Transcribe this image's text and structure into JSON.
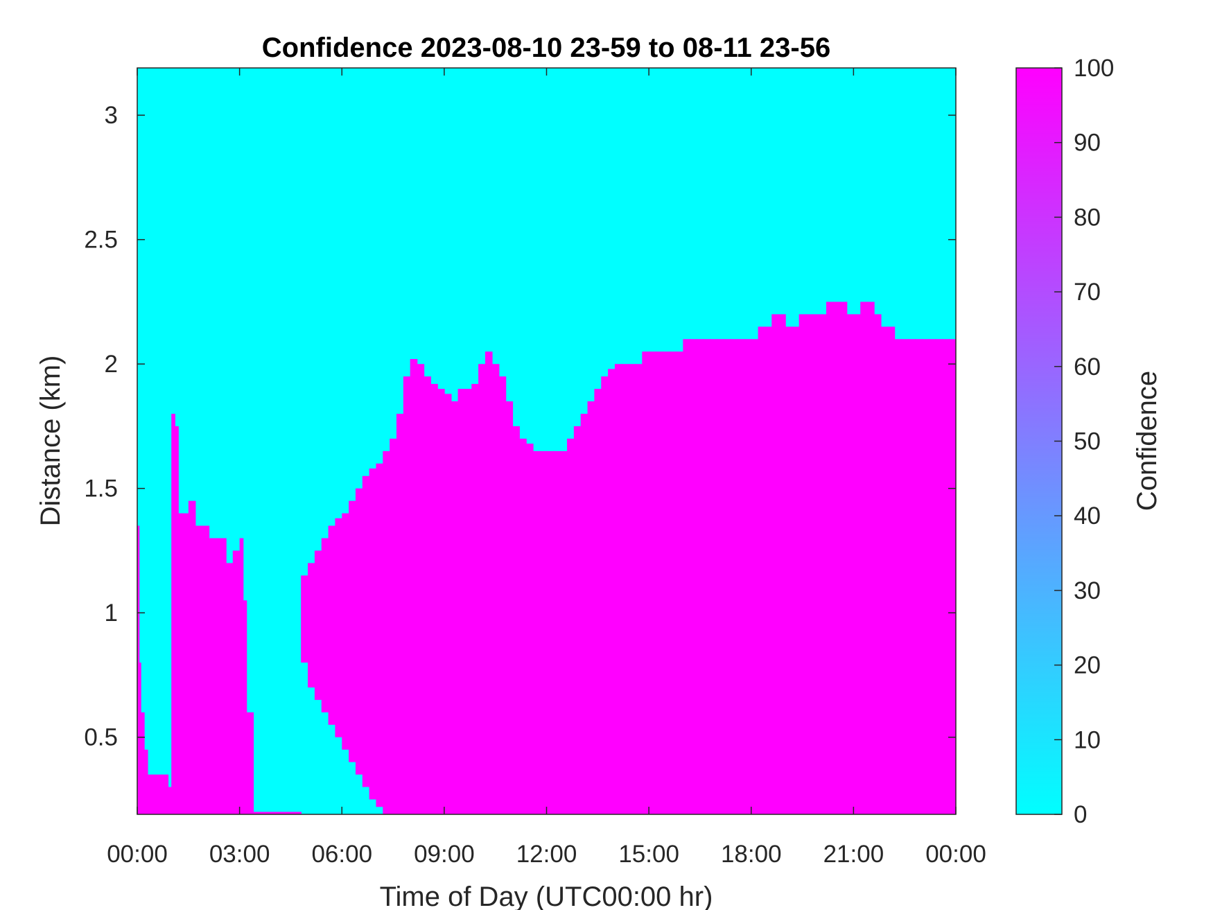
{
  "chart_data": {
    "type": "heatmap",
    "title": "Confidence 2023-08-10 23-59 to 08-11 23-56",
    "xlabel": "Time of Day (UTC00:00 hr)",
    "ylabel": "Distance (km)",
    "xlim": [
      0,
      24
    ],
    "ylim": [
      0.19,
      3.19
    ],
    "x_tick_values": [
      0,
      3,
      6,
      9,
      12,
      15,
      18,
      21,
      24
    ],
    "x_tick_labels": [
      "00:00",
      "03:00",
      "06:00",
      "09:00",
      "12:00",
      "15:00",
      "18:00",
      "21:00",
      "00:00"
    ],
    "y_tick_values": [
      0.5,
      1,
      1.5,
      2,
      2.5,
      3
    ],
    "y_tick_labels": [
      "0.5",
      "1",
      "1.5",
      "2",
      "2.5",
      "3"
    ],
    "colorbar": {
      "label": "Confidence",
      "range": [
        0,
        100
      ],
      "tick_values": [
        0,
        10,
        20,
        30,
        40,
        50,
        60,
        70,
        80,
        90,
        100
      ],
      "tick_labels": [
        "0",
        "10",
        "20",
        "30",
        "40",
        "50",
        "60",
        "70",
        "80",
        "90",
        "100"
      ],
      "colors": [
        "#00ffff",
        "#ff00ff"
      ]
    },
    "colors": {
      "low": "#00ffff",
      "high": "#ff00ff"
    },
    "high_confidence_layer": {
      "description_value": 100,
      "time_hr": [
        0,
        0.05,
        0.1,
        0.2,
        0.3,
        0.5,
        0.7,
        0.9,
        1.0,
        1.1,
        1.2,
        1.3,
        1.5,
        1.7,
        1.9,
        2.1,
        2.3,
        2.5,
        2.6,
        2.8,
        3.0,
        3.1,
        3.2,
        3.4,
        3.6,
        3.8,
        4.0,
        4.2,
        4.4,
        4.6,
        4.8,
        5.0,
        5.2,
        5.4,
        5.6,
        5.8,
        6.0,
        6.2,
        6.4,
        6.6,
        6.8,
        7.0,
        7.2,
        7.4,
        7.6,
        7.8,
        8.0,
        8.2,
        8.4,
        8.6,
        8.8,
        9.0,
        9.2,
        9.4,
        9.6,
        9.8,
        10.0,
        10.2,
        10.4,
        10.6,
        10.8,
        11.0,
        11.2,
        11.4,
        11.6,
        11.8,
        12.0,
        12.2,
        12.4,
        12.6,
        12.8,
        13.0,
        13.2,
        13.4,
        13.6,
        13.8,
        14.0,
        14.2,
        14.4,
        14.6,
        14.8,
        15.0,
        15.2,
        15.4,
        15.6,
        15.8,
        16.0,
        16.2,
        16.4,
        16.6,
        16.8,
        17.0,
        17.2,
        17.4,
        17.6,
        17.8,
        18.0,
        18.2,
        18.4,
        18.6,
        18.8,
        19.0,
        19.2,
        19.4,
        19.6,
        19.8,
        20.0,
        20.2,
        20.4,
        20.6,
        20.8,
        21.0,
        21.2,
        21.4,
        21.6,
        21.8,
        22.0,
        22.2,
        22.4,
        22.6,
        22.8,
        23.0,
        23.2,
        23.4,
        23.6,
        23.8,
        24.0
      ],
      "top_km": [
        1.35,
        0.8,
        0.6,
        0.45,
        0.35,
        0.35,
        0.35,
        0.3,
        1.8,
        1.75,
        1.4,
        1.4,
        1.45,
        1.35,
        1.35,
        1.3,
        1.3,
        1.3,
        1.2,
        1.25,
        1.3,
        1.05,
        0.6,
        0.2,
        0.2,
        0.2,
        0.2,
        0.2,
        0.2,
        0.2,
        1.15,
        1.2,
        1.25,
        1.3,
        1.35,
        1.38,
        1.4,
        1.45,
        1.5,
        1.55,
        1.58,
        1.6,
        1.65,
        1.7,
        1.8,
        1.95,
        2.02,
        2.0,
        1.95,
        1.92,
        1.9,
        1.88,
        1.85,
        1.9,
        1.9,
        1.92,
        2.0,
        2.05,
        2.0,
        1.95,
        1.85,
        1.75,
        1.7,
        1.68,
        1.65,
        1.65,
        1.65,
        1.65,
        1.65,
        1.7,
        1.75,
        1.8,
        1.85,
        1.9,
        1.95,
        1.98,
        2.0,
        2.0,
        2.0,
        2.0,
        2.05,
        2.05,
        2.05,
        2.05,
        2.05,
        2.05,
        2.1,
        2.1,
        2.1,
        2.1,
        2.1,
        2.1,
        2.1,
        2.1,
        2.1,
        2.1,
        2.1,
        2.15,
        2.15,
        2.2,
        2.2,
        2.15,
        2.15,
        2.2,
        2.2,
        2.2,
        2.2,
        2.25,
        2.25,
        2.25,
        2.2,
        2.2,
        2.25,
        2.25,
        2.2,
        2.15,
        2.15,
        2.1,
        2.1,
        2.1,
        2.1,
        2.1,
        2.1,
        2.1,
        2.1,
        2.1,
        2.1
      ],
      "bottom_km": [
        0.19,
        0.19,
        0.19,
        0.19,
        0.19,
        0.19,
        0.19,
        0.19,
        0.19,
        0.19,
        0.19,
        0.19,
        0.19,
        0.19,
        0.19,
        0.19,
        0.19,
        0.19,
        0.19,
        0.19,
        0.19,
        0.19,
        0.19,
        0.19,
        0.19,
        0.19,
        0.19,
        0.19,
        0.19,
        0.19,
        0.8,
        0.7,
        0.65,
        0.6,
        0.55,
        0.5,
        0.45,
        0.4,
        0.35,
        0.3,
        0.25,
        0.22,
        0.19,
        0.19,
        0.19,
        0.19,
        0.19,
        0.19,
        0.19,
        0.19,
        0.19,
        0.19,
        0.19,
        0.19,
        0.19,
        0.19,
        0.19,
        0.19,
        0.19,
        0.19,
        0.19,
        0.19,
        0.19,
        0.19,
        0.19,
        0.19,
        0.19,
        0.19,
        0.19,
        0.19,
        0.19,
        0.19,
        0.19,
        0.19,
        0.19,
        0.19,
        0.19,
        0.19,
        0.19,
        0.19,
        0.19,
        0.19,
        0.19,
        0.19,
        0.19,
        0.19,
        0.19,
        0.19,
        0.19,
        0.19,
        0.19,
        0.19,
        0.19,
        0.19,
        0.19,
        0.19,
        0.19,
        0.19,
        0.19,
        0.19,
        0.19,
        0.19,
        0.19,
        0.19,
        0.19,
        0.19,
        0.19,
        0.19,
        0.19,
        0.19,
        0.19,
        0.19,
        0.19,
        0.19,
        0.19,
        0.19,
        0.19,
        0.19,
        0.19,
        0.19,
        0.19,
        0.19,
        0.19,
        0.19,
        0.19,
        0.19,
        0.19
      ]
    }
  }
}
